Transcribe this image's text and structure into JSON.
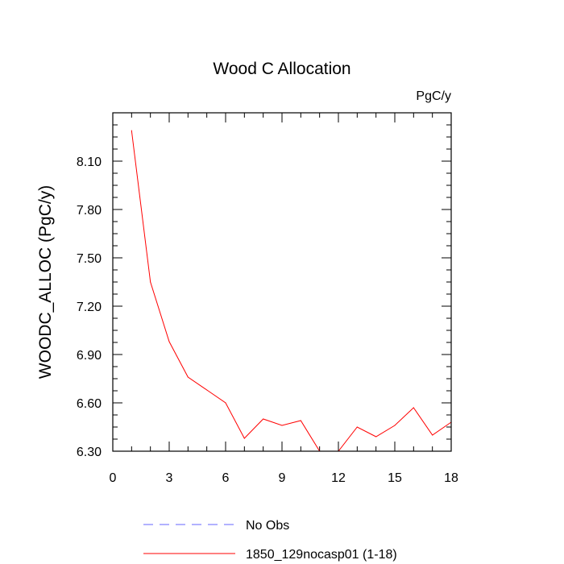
{
  "chart_data": {
    "type": "line",
    "title": "Wood C Allocation",
    "units_label": "PgC/y",
    "ylabel": "WOODC_ALLOC  (PgC/y)",
    "xlabel": "",
    "xlim": [
      0,
      18
    ],
    "ylim": [
      6.3,
      8.4
    ],
    "x_ticks": [
      0,
      3,
      6,
      9,
      12,
      15,
      18
    ],
    "x_tick_labels": [
      "0",
      "3",
      "6",
      "9",
      "12",
      "15",
      "18"
    ],
    "y_ticks": [
      6.3,
      6.6,
      6.9,
      7.2,
      7.5,
      7.8,
      8.1
    ],
    "y_tick_labels": [
      "6.30",
      "6.60",
      "6.90",
      "7.20",
      "7.50",
      "7.80",
      "8.10"
    ],
    "grid": false,
    "legend_position": "bottom",
    "series": [
      {
        "name": "No Obs",
        "color": "#6666ff",
        "dash": "dashed",
        "x": [],
        "y": []
      },
      {
        "name": "1850_129nocasp01 (1-18)",
        "color": "#ff0000",
        "dash": "solid",
        "x": [
          1,
          2,
          3,
          4,
          5,
          6,
          7,
          8,
          9,
          10,
          11,
          12,
          13,
          14,
          15,
          16,
          17,
          18
        ],
        "y": [
          8.29,
          7.35,
          6.98,
          6.76,
          6.68,
          6.6,
          6.38,
          6.5,
          6.46,
          6.49,
          6.3,
          6.3,
          6.45,
          6.39,
          6.46,
          6.57,
          6.4,
          6.48
        ]
      }
    ]
  }
}
